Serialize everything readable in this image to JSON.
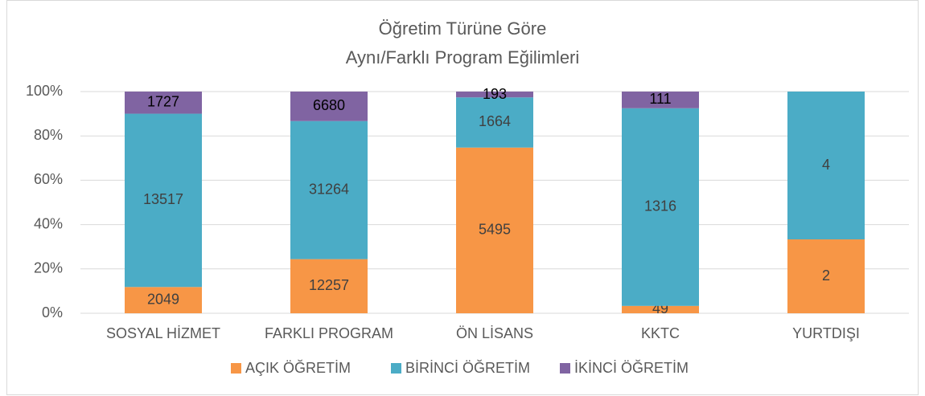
{
  "chart_data": {
    "type": "bar",
    "stack": "percent",
    "title": "Öğretim Türüne Göre",
    "subtitle": "Aynı/Farklı Program Eğilimleri",
    "categories": [
      "SOSYAL HİZMET",
      "FARKLI PROGRAM",
      "ÖN LİSANS",
      "KKTC",
      "YURTDIŞI"
    ],
    "series": [
      {
        "name": "AÇIK ÖĞRETİM",
        "color": "#f79646",
        "values": [
          2049,
          12257,
          5495,
          49,
          2
        ]
      },
      {
        "name": "BİRİNCİ ÖĞRETİM",
        "color": "#4bacc6",
        "values": [
          13517,
          31264,
          1664,
          1316,
          4
        ]
      },
      {
        "name": "İKİNCİ ÖĞRETİM",
        "color": "#8064a2",
        "values": [
          1727,
          6680,
          193,
          111,
          null
        ]
      }
    ],
    "ylim": [
      0,
      100
    ],
    "yticks": [
      {
        "value": 0,
        "label": "0%"
      },
      {
        "value": 20,
        "label": "20%"
      },
      {
        "value": 40,
        "label": "40%"
      },
      {
        "value": 60,
        "label": "60%"
      },
      {
        "value": 80,
        "label": "80%"
      },
      {
        "value": 100,
        "label": "100%"
      }
    ],
    "grid": true,
    "legend": "bottom"
  }
}
